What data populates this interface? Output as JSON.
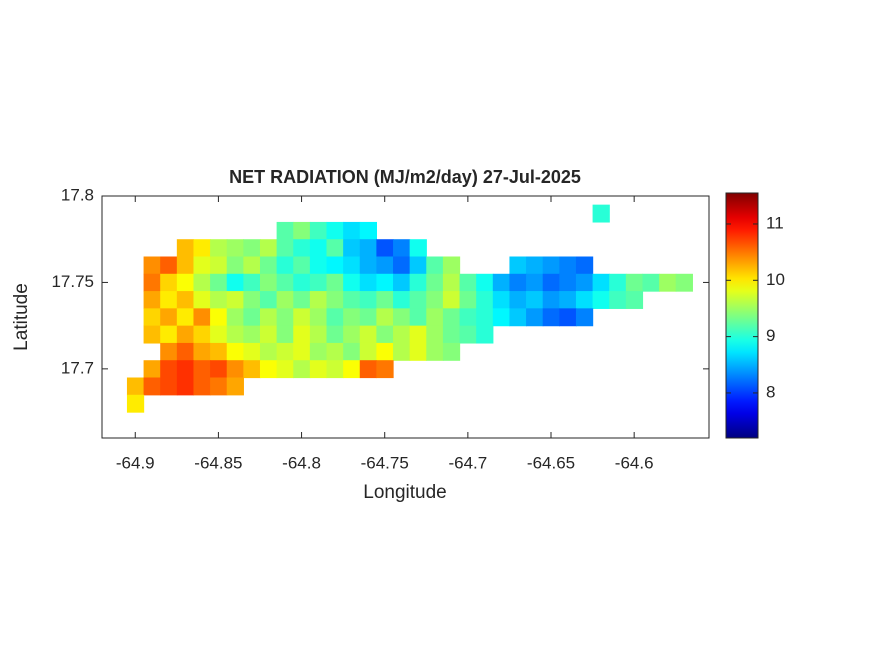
{
  "chart_data": {
    "type": "heatmap",
    "title": "NET RADIATION (MJ/m2/day) 27-Jul-2025",
    "xlabel": "Longitude",
    "ylabel": "Latitude",
    "colormap": "jet",
    "clim": [
      7.2,
      11.55
    ],
    "cticks": [
      8,
      9,
      10,
      11
    ],
    "xlim": [
      -64.92,
      -64.555
    ],
    "ylim": [
      17.66,
      17.8
    ],
    "xticks": [
      -64.9,
      -64.85,
      -64.8,
      -64.75,
      -64.7,
      -64.65,
      -64.6
    ],
    "yticks": [
      17.7,
      17.75,
      17.8
    ],
    "x": [
      -64.9,
      -64.89,
      -64.88,
      -64.87,
      -64.86,
      -64.85,
      -64.84,
      -64.83,
      -64.82,
      -64.81,
      -64.8,
      -64.79,
      -64.78,
      -64.77,
      -64.76,
      -64.75,
      -64.74,
      -64.73,
      -64.72,
      -64.71,
      -64.7,
      -64.69,
      -64.68,
      -64.67,
      -64.66,
      -64.65,
      -64.64,
      -64.63,
      -64.62,
      -64.61,
      -64.6,
      -64.59,
      -64.58,
      -64.57
    ],
    "y": [
      17.79,
      17.78,
      17.77,
      17.76,
      17.75,
      17.74,
      17.73,
      17.72,
      17.71,
      17.7,
      17.69,
      17.68
    ],
    "z": [
      [
        null,
        null,
        null,
        null,
        null,
        null,
        null,
        null,
        null,
        null,
        null,
        null,
        null,
        null,
        null,
        null,
        null,
        null,
        null,
        null,
        null,
        null,
        null,
        null,
        null,
        null,
        null,
        null,
        9.0,
        null,
        null,
        null,
        null,
        null
      ],
      [
        null,
        null,
        null,
        null,
        null,
        null,
        null,
        null,
        null,
        9.2,
        9.4,
        9.1,
        8.9,
        8.7,
        8.8,
        null,
        null,
        null,
        null,
        null,
        null,
        null,
        null,
        null,
        null,
        null,
        null,
        null,
        null,
        null,
        null,
        null,
        null,
        null
      ],
      [
        null,
        null,
        null,
        10.2,
        10.0,
        9.6,
        9.5,
        9.4,
        9.6,
        9.2,
        9.0,
        8.9,
        9.2,
        8.6,
        8.5,
        8.1,
        8.3,
        8.9,
        null,
        null,
        null,
        null,
        null,
        null,
        null,
        null,
        null,
        null,
        null,
        null,
        null,
        null,
        null,
        null
      ],
      [
        null,
        10.4,
        10.6,
        10.2,
        9.8,
        9.7,
        9.4,
        9.6,
        9.3,
        9.0,
        9.2,
        8.9,
        8.8,
        8.7,
        8.5,
        8.4,
        8.2,
        8.6,
        9.2,
        9.5,
        null,
        null,
        null,
        8.6,
        8.5,
        8.4,
        8.3,
        8.2,
        null,
        null,
        null,
        null,
        null,
        null
      ],
      [
        null,
        10.5,
        10.1,
        9.9,
        9.6,
        9.3,
        8.9,
        9.1,
        9.4,
        9.2,
        9.0,
        9.1,
        9.3,
        8.9,
        8.7,
        8.8,
        8.6,
        9.0,
        9.3,
        9.6,
        9.2,
        8.9,
        8.5,
        8.3,
        8.4,
        8.2,
        8.3,
        8.4,
        8.7,
        9.0,
        9.3,
        9.2,
        9.5,
        9.4
      ],
      [
        null,
        10.3,
        10.0,
        10.2,
        9.8,
        9.6,
        9.7,
        9.4,
        9.2,
        9.5,
        9.3,
        9.6,
        9.4,
        9.2,
        9.1,
        9.3,
        9.0,
        9.2,
        9.4,
        9.7,
        9.3,
        9.0,
        8.7,
        8.5,
        8.6,
        8.4,
        8.5,
        8.7,
        8.9,
        9.1,
        9.2,
        null,
        null,
        null
      ],
      [
        null,
        10.1,
        10.3,
        10.0,
        10.4,
        9.9,
        9.5,
        9.3,
        9.6,
        9.4,
        9.7,
        9.5,
        9.2,
        9.4,
        9.3,
        9.6,
        9.4,
        9.2,
        9.5,
        9.3,
        9.1,
        9.0,
        8.8,
        8.6,
        8.4,
        8.2,
        8.1,
        8.3,
        null,
        null,
        null,
        null,
        null,
        null
      ],
      [
        null,
        10.2,
        10.0,
        10.3,
        10.1,
        9.8,
        9.6,
        9.5,
        9.7,
        9.4,
        9.8,
        9.6,
        9.3,
        9.5,
        9.7,
        9.4,
        9.6,
        9.8,
        9.5,
        9.3,
        9.2,
        9.0,
        null,
        null,
        null,
        null,
        null,
        null,
        null,
        null,
        null,
        null,
        null,
        null
      ],
      [
        null,
        null,
        10.4,
        10.6,
        10.3,
        10.2,
        9.9,
        9.8,
        9.6,
        9.7,
        9.8,
        9.5,
        9.6,
        9.4,
        9.7,
        9.9,
        9.6,
        9.8,
        9.5,
        9.4,
        null,
        null,
        null,
        null,
        null,
        null,
        null,
        null,
        null,
        null,
        null,
        null,
        null,
        null
      ],
      [
        null,
        10.3,
        10.7,
        10.8,
        10.6,
        10.7,
        10.4,
        10.2,
        9.9,
        9.8,
        9.6,
        9.8,
        9.7,
        9.9,
        10.6,
        10.5,
        null,
        null,
        null,
        null,
        null,
        null,
        null,
        null,
        null,
        null,
        null,
        null,
        null,
        null,
        null,
        null,
        null,
        null
      ],
      [
        10.2,
        10.6,
        10.7,
        10.8,
        10.6,
        10.5,
        10.3,
        null,
        null,
        null,
        null,
        null,
        null,
        null,
        null,
        null,
        null,
        null,
        null,
        null,
        null,
        null,
        null,
        null,
        null,
        null,
        null,
        null,
        null,
        null,
        null,
        null,
        null,
        null
      ],
      [
        10.0,
        null,
        null,
        null,
        null,
        null,
        null,
        null,
        null,
        null,
        null,
        null,
        null,
        null,
        null,
        null,
        null,
        null,
        null,
        null,
        null,
        null,
        null,
        null,
        null,
        null,
        null,
        null,
        null,
        null,
        null,
        null,
        null,
        null
      ]
    ]
  }
}
